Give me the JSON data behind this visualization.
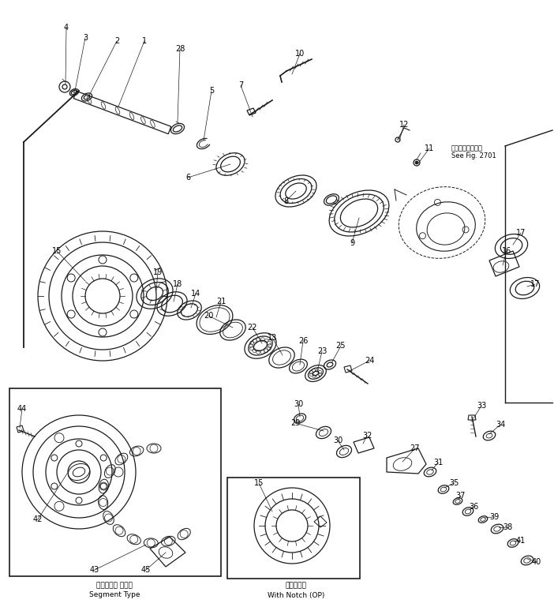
{
  "bg_color": "#ffffff",
  "line_color": "#1a1a1a",
  "text_color": "#000000",
  "fig_width": 7.02,
  "fig_height": 7.69,
  "dpi": 100,
  "subtitle_left_jp": "セグメント タイプ",
  "subtitle_left_en": "Segment Type",
  "subtitle_right_jp": "切り欠き材",
  "subtitle_right_en": "With Notch (OP)",
  "note_line1": "第２７０１図参照",
  "note_line2": "See Fig. 2701"
}
